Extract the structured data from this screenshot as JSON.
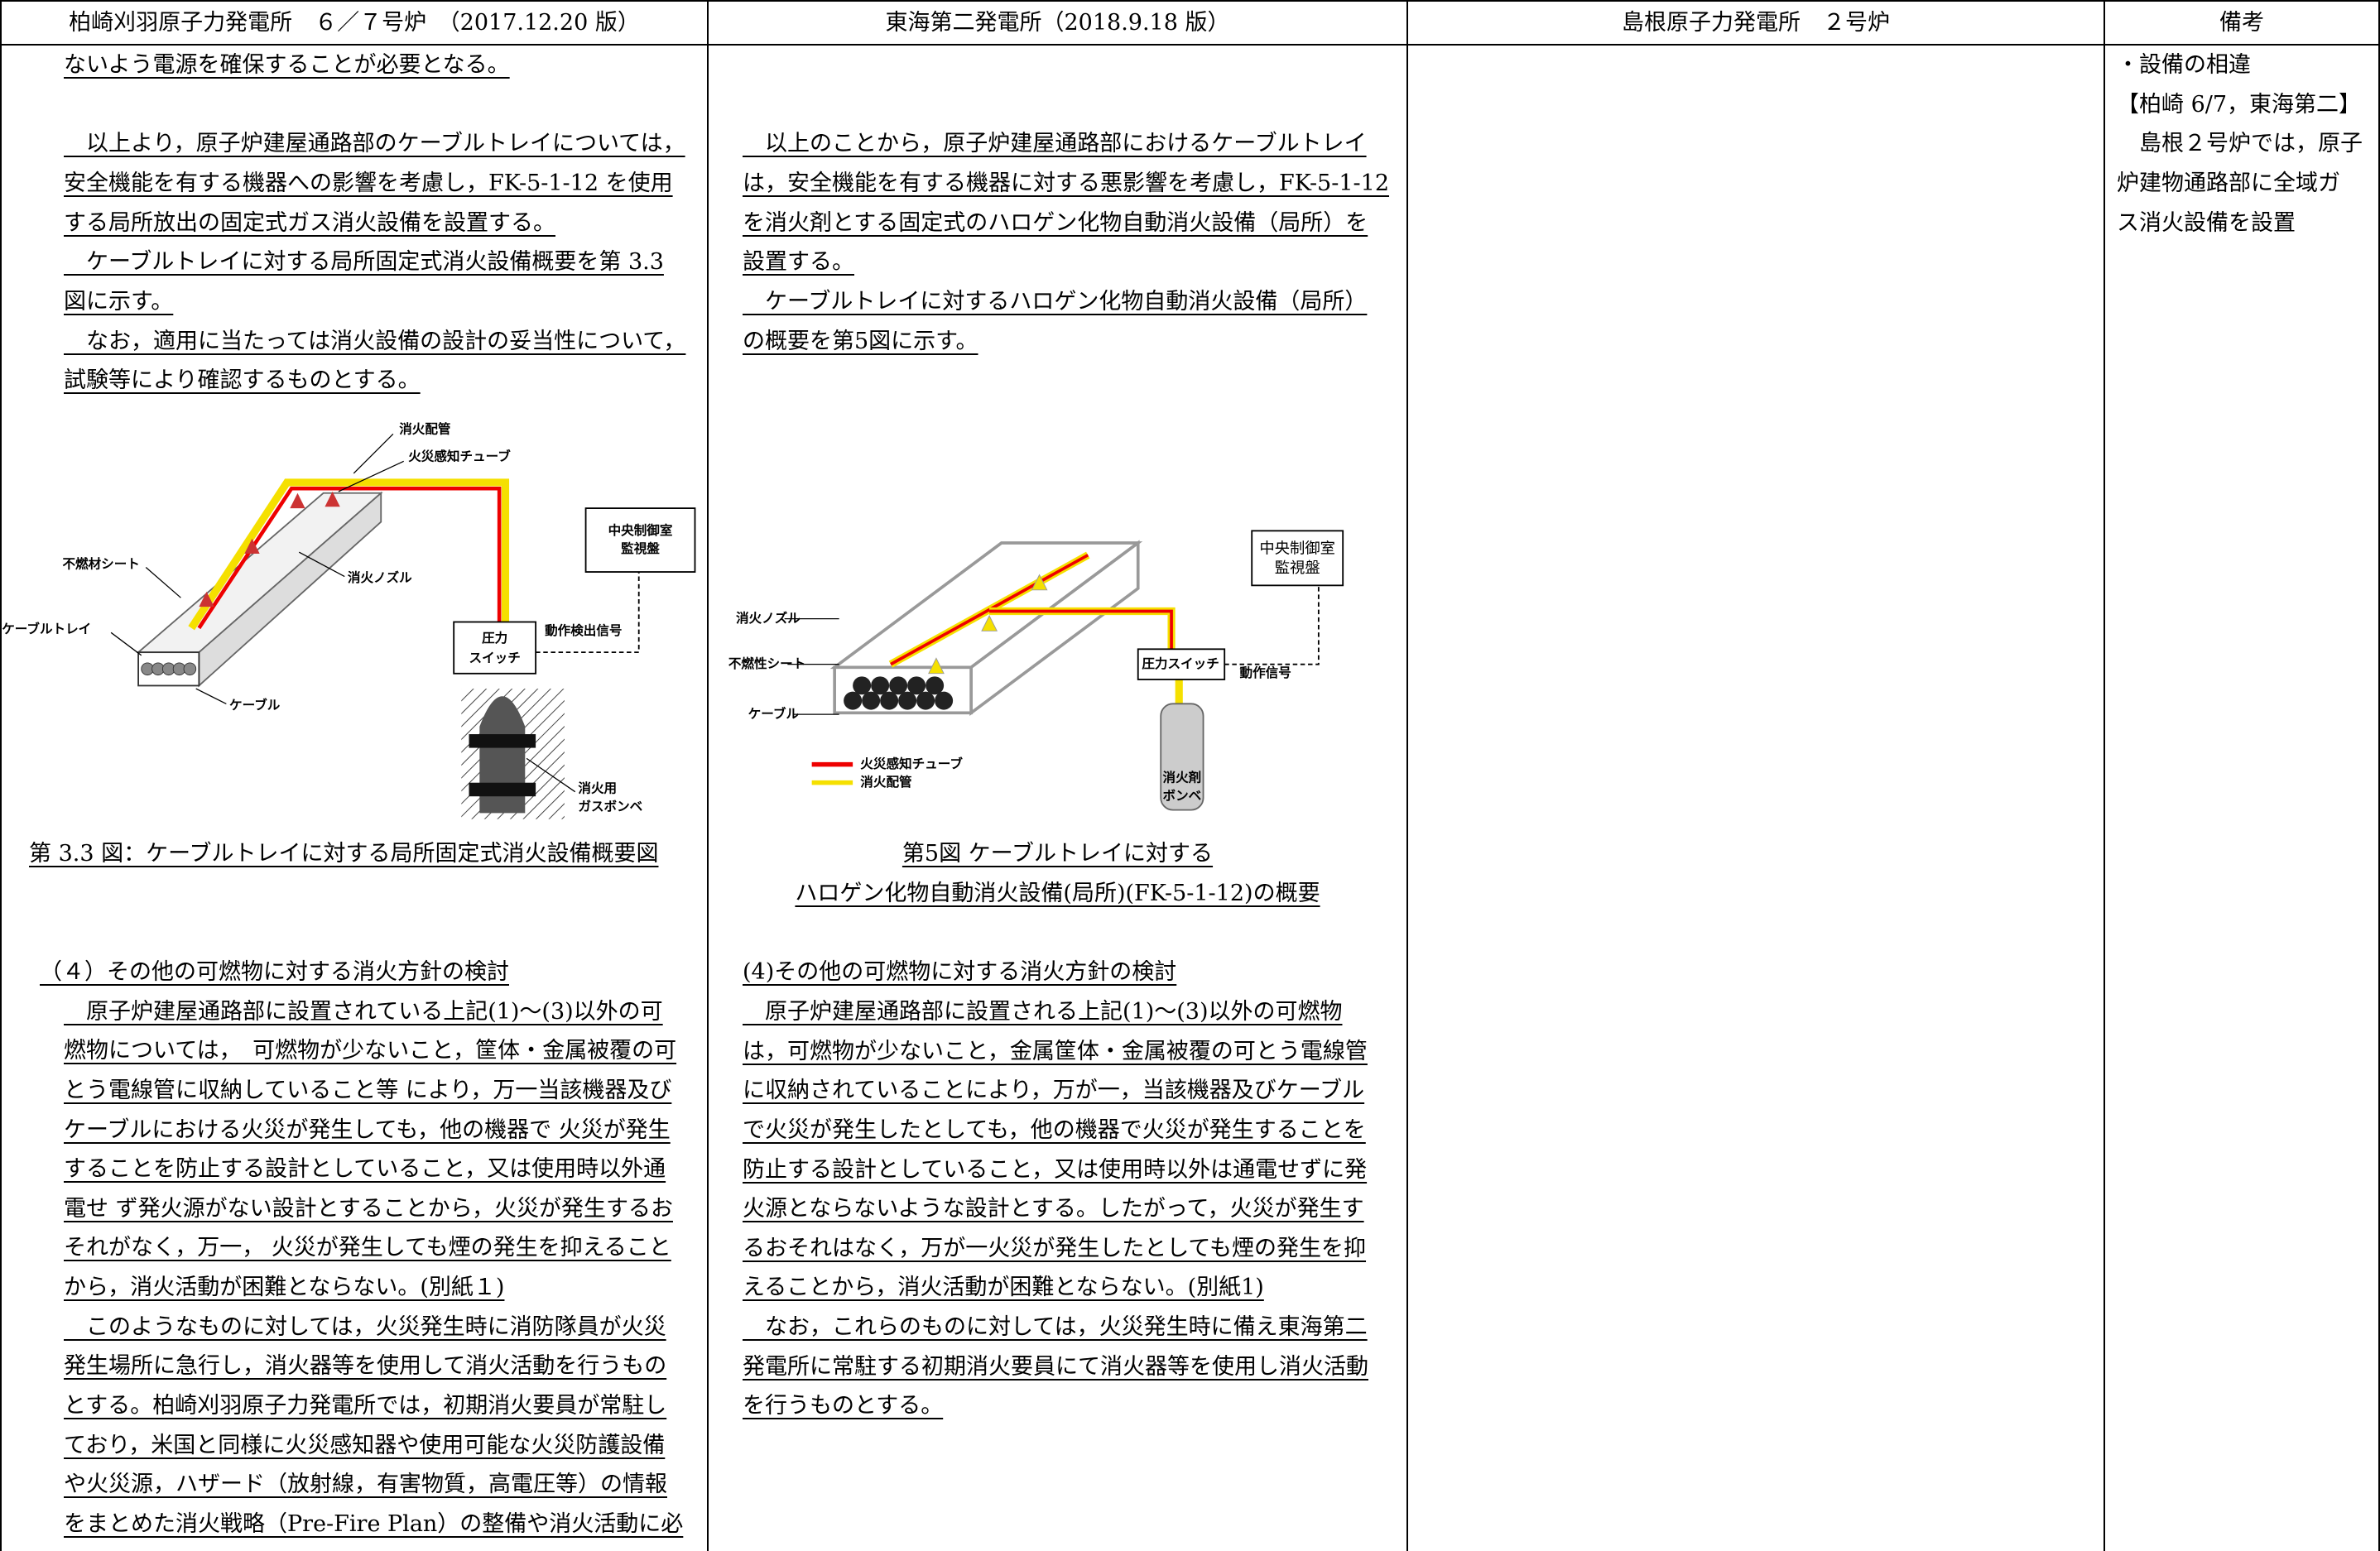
{
  "header": [
    "柏崎刈羽原子力発電所　６／７号炉　（2017.12.20 版）",
    "東海第二発電所（2018.9.18 版）",
    "島根原子力発電所　２号炉",
    "備考"
  ],
  "kk": {
    "intro": [
      "ないよう電源を確保することが必要となる。"
    ],
    "para": [
      "　以上より，原子炉建屋通路部のケーブルトレイについては，",
      "安全機能を有する機器への影響を考慮し，FK-5-1-12 を使用",
      "する局所放出の固定式ガス消火設備を設置する。",
      "　ケーブルトレイに対する局所固定式消火設備概要を第 3.3",
      "図に示す。",
      "　なお，適用に当たっては消火設備の設計の妥当性について，",
      "試験等により確認するものとする。"
    ],
    "figure": {
      "pipe": "消火配管",
      "tube": "火災感知チューブ",
      "panel": [
        "中央制御室",
        "監視盤"
      ],
      "sheet": "不燃材シート",
      "nozzle": "消火ノズル",
      "tray": "ケーブルトレイ",
      "switch": [
        "圧力",
        "スイッチ"
      ],
      "signal": "動作検出信号",
      "cable": "ケーブル",
      "bottle": [
        "消火用",
        "ガスボンベ"
      ]
    },
    "caption": "第 3.3 図：ケーブルトレイに対する局所固定式消火設備概要図",
    "section": "（４）その他の可燃物に対する消火方針の検討",
    "body": [
      "　原子炉建屋通路部に設置されている上記(1)～(3)以外の可",
      "燃物については，　可燃物が少ないこと，筐体・金属被覆の可",
      "とう電線管に収納していること等 により，万一当該機器及び",
      "ケーブルにおける火災が発生しても，他の機器で 火災が発生",
      "することを防止する設計としていること，又は使用時以外通",
      "電せ ず発火源がない設計とすることから，火災が発生するお",
      "それがなく，万一， 火災が発生しても煙の発生を抑えること",
      "から，消火活動が困難とならない。(別紙１)",
      "　このようなものに対しては，火災発生時に消防隊員が火災",
      "発生場所に急行し，消火器等を使用して消火活動を行うもの",
      "とする。柏崎刈羽原子力発電所では，初期消火要員が常駐し",
      "ており，米国と同様に火災感知器や使用可能な火災防護設備",
      "や火災源，ハザード（放射線，有害物質，高電圧等）の情報",
      "をまとめた消火戦略（Pre-Fire Plan）の整備や消火活動に必"
    ]
  },
  "tokai": {
    "para": [
      "　以上のことから，原子炉建屋通路部におけるケーブルトレイ",
      "は，安全機能を有する機器に対する悪影響を考慮し，FK-5-1-12",
      "を消火剤とする固定式のハロゲン化物自動消火設備（局所）を",
      "設置する。",
      "　ケーブルトレイに対するハロゲン化物自動消火設備（局所）",
      "の概要を第5図に示す。"
    ],
    "figure": {
      "panel": [
        "中央制御室",
        "監視盤"
      ],
      "nozzle": "消火ノズル",
      "sheet": "不燃性シート",
      "cable": "ケーブル",
      "switch": "圧力スイッチ",
      "signal": "動作信号",
      "tube": "火災感知チューブ",
      "pipe": "消火配管",
      "bottle": [
        "消火剤",
        "ボンベ"
      ]
    },
    "caption": [
      "第5図 ケーブルトレイに対する",
      "ハロゲン化物自動消火設備(局所)(FK-5-1-12)の概要"
    ],
    "section": "(4)その他の可燃物に対する消火方針の検討",
    "body": [
      "　原子炉建屋通路部に設置される上記(1)～(3)以外の可燃物",
      "は，可燃物が少ないこと，金属筐体・金属被覆の可とう電線管",
      "に収納されていることにより，万が一，当該機器及びケーブル",
      "で火災が発生したとしても，他の機器で火災が発生することを",
      "防止する設計としていること，又は使用時以外は通電せずに発",
      "火源とならないような設計とする。したがって，火災が発生す",
      "るおそれはなく，万が一火災が発生したとしても煙の発生を抑",
      "えることから，消火活動が困難とならない。(別紙1)",
      "　なお，これらのものに対しては，火災発生時に備え東海第二",
      "発電所に常駐する初期消火要員にて消火器等を使用し消火活動",
      "を行うものとする。"
    ]
  },
  "remarks": [
    "・設備の相違",
    "【柏崎 6/7，東海第二】",
    "　島根２号炉では，原子",
    "炉建物通路部に全域ガ",
    "ス消火設備を設置"
  ]
}
